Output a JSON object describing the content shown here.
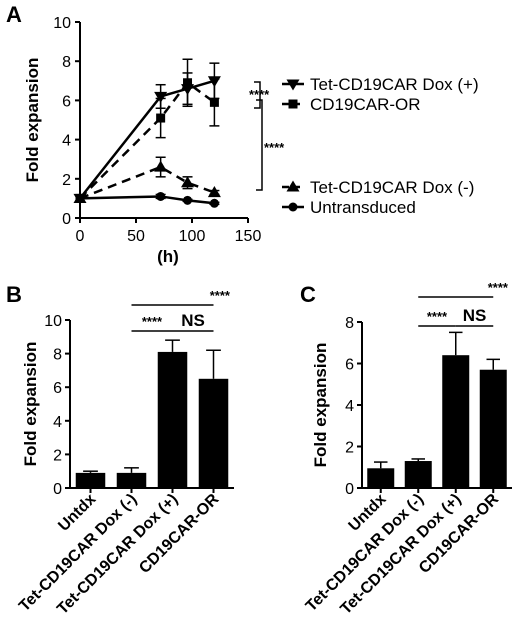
{
  "chart_data": [
    {
      "panel": "A",
      "type": "line",
      "xlabel": "(h)",
      "ylabel": "Fold expansion",
      "xlim": [
        0,
        150
      ],
      "ylim": [
        0,
        10
      ],
      "xticks": [
        0,
        50,
        100,
        150
      ],
      "yticks": [
        0,
        2,
        4,
        6,
        8,
        10
      ],
      "grid": false,
      "legend_position": "right",
      "series": [
        {
          "name": "Tet-CD19CAR Dox (+)",
          "marker": "triangle-down",
          "dash": false,
          "x": [
            0,
            72,
            96,
            120
          ],
          "y": [
            1.0,
            6.2,
            6.6,
            7.0
          ],
          "err": [
            0,
            0.6,
            0.8,
            0.9
          ]
        },
        {
          "name": "CD19CAR-OR",
          "marker": "square",
          "dash": true,
          "x": [
            0,
            72,
            96,
            120
          ],
          "y": [
            1.0,
            5.1,
            6.9,
            5.9
          ],
          "err": [
            0,
            1.0,
            1.2,
            1.2
          ]
        },
        {
          "name": "Tet-CD19CAR Dox (-)",
          "marker": "triangle-up",
          "dash": true,
          "x": [
            0,
            72,
            96,
            120
          ],
          "y": [
            1.0,
            2.6,
            1.8,
            1.3
          ],
          "err": [
            0,
            0.5,
            0.3,
            0.1
          ]
        },
        {
          "name": "Untransduced",
          "marker": "circle",
          "dash": false,
          "x": [
            0,
            72,
            96,
            120
          ],
          "y": [
            1.0,
            1.1,
            0.9,
            0.75
          ],
          "err": [
            0,
            0.1,
            0.05,
            0.05
          ]
        }
      ],
      "annotations": {
        "sig_top": "****",
        "sig_side": "****"
      }
    },
    {
      "panel": "B",
      "type": "bar",
      "ylabel": "Fold expansion",
      "ylim": [
        0,
        10
      ],
      "yticks": [
        0,
        2,
        4,
        6,
        8,
        10
      ],
      "categories": [
        "Untdx",
        "Tet-CD19CAR Dox (-)",
        "Tet-CD19CAR Dox (+)",
        "CD19CAR-OR"
      ],
      "values": [
        0.9,
        0.9,
        8.1,
        6.5
      ],
      "errors": [
        0.1,
        0.3,
        0.7,
        1.7
      ],
      "sig_long": "****",
      "sig_short": "****",
      "sig_ns": "NS"
    },
    {
      "panel": "C",
      "type": "bar",
      "ylabel": "Fold expansion",
      "ylim": [
        0,
        8
      ],
      "yticks": [
        0,
        2,
        4,
        6,
        8
      ],
      "categories": [
        "Untdx",
        "Tet-CD19CAR Dox (-)",
        "Tet-CD19CAR Dox (+)",
        "CD19CAR-OR"
      ],
      "values": [
        0.95,
        1.3,
        6.4,
        5.7
      ],
      "errors": [
        0.3,
        0.1,
        1.1,
        0.5
      ],
      "sig_long": "****",
      "sig_short": "****",
      "sig_ns": "NS"
    }
  ]
}
